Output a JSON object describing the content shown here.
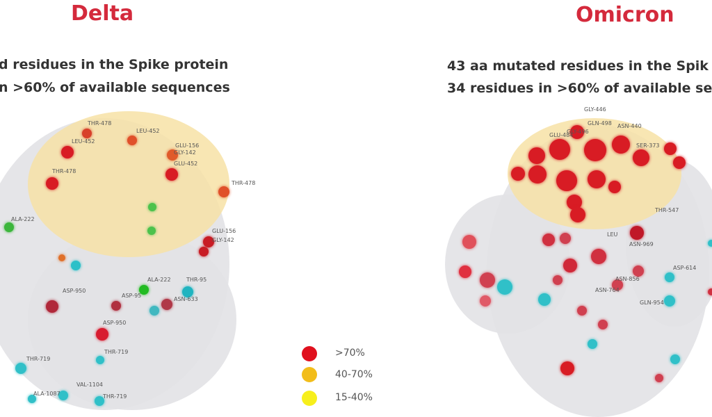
{
  "delta": {
    "title": "Delta",
    "subtitle_line1": "d residues in the Spike protein",
    "subtitle_line2": "n >60% of available sequences",
    "residue_labels": [
      "THR-478",
      "LEU-452",
      "LEU-452",
      "GLU-156",
      "GLY-142",
      "GLU-452",
      "THR-478",
      "THR-478",
      "ALA-222",
      "GLU-156",
      "GLY-142",
      "ALA-222",
      "THR-95",
      "ASP-950",
      "ASP-95",
      "ASN-633",
      "ASP-950",
      "THR-719",
      "THR-719",
      "VAL-1104",
      "ALA-1087",
      "THR-719"
    ]
  },
  "omicron": {
    "title": "Omicron",
    "subtitle_line1": "43 aa mutated residues in the Spik",
    "subtitle_line2": "34 residues in >60% of available se",
    "residue_labels": [
      "GLY-446",
      "GLN-498",
      "ASN-440",
      "GLU-484",
      "GLY-496",
      "SER-373",
      "THR-547",
      "LEU",
      "ASN-969",
      "ASP-614",
      "ASN-856",
      "ASN-764",
      "GLN-954"
    ]
  },
  "legend": [
    {
      "label": ">70%",
      "color": "#e0101e"
    },
    {
      "label": "40-70%",
      "color": "#f2bd1a"
    },
    {
      "label": "15-40%",
      "color": "#f7ef1c"
    }
  ],
  "colors": {
    "title": "#d42a3c",
    "red": "#d81c24",
    "cyan": "#2cc0c8",
    "green": "#3cc23c",
    "protein": "#d8d8dc",
    "rbd": "#f6dc9a"
  }
}
